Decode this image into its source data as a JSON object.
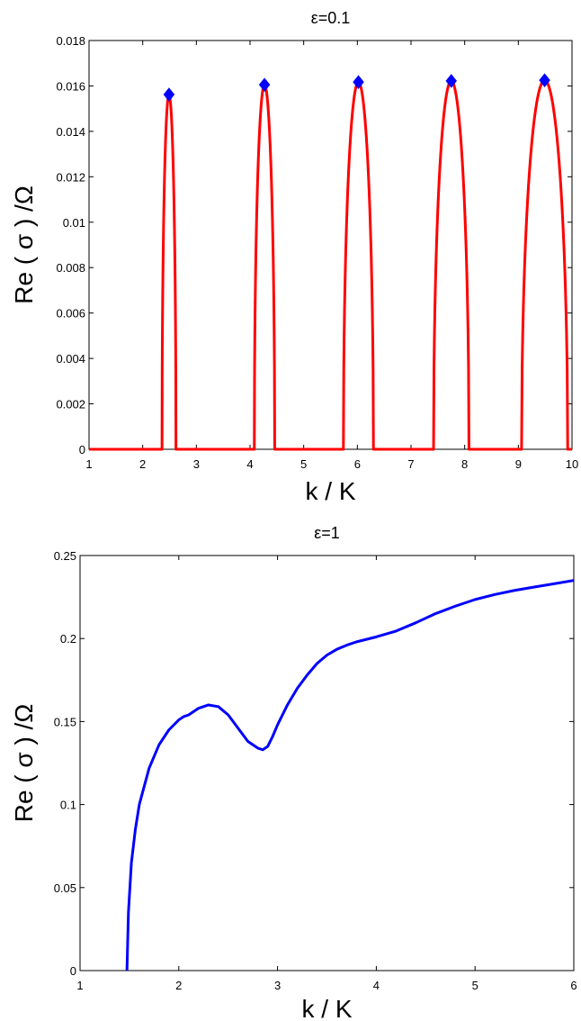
{
  "chart_data": [
    {
      "type": "line",
      "title": "ε=0.1",
      "xlabel": "k / K",
      "ylabel": "Re ( σ ) /Ω",
      "xlim": [
        1,
        10
      ],
      "ylim": [
        0,
        0.018
      ],
      "grid": false,
      "xticks": [
        "1",
        "2",
        "3",
        "4",
        "5",
        "6",
        "7",
        "8",
        "9",
        "10"
      ],
      "yticks": [
        "0",
        "0.002",
        "0.004",
        "0.006",
        "0.008",
        "0.01",
        "0.012",
        "0.014",
        "0.016",
        "0.018"
      ],
      "series": [
        {
          "color": "#ff0000",
          "bands": [
            {
              "k_start": 2.36,
              "k_end": 2.62,
              "peak_k": 2.49,
              "peak": 0.01562
            },
            {
              "k_start": 4.08,
              "k_end": 4.46,
              "peak_k": 4.27,
              "peak": 0.01605
            },
            {
              "k_start": 5.74,
              "k_end": 6.3,
              "peak_k": 6.02,
              "peak": 0.01617
            },
            {
              "k_start": 7.42,
              "k_end": 8.08,
              "peak_k": 7.75,
              "peak": 0.01622
            },
            {
              "k_start": 9.06,
              "k_end": 9.92,
              "peak_k": 9.49,
              "peak": 0.01625
            }
          ]
        }
      ],
      "markers": {
        "shape": "diamond",
        "color": "#0000ff",
        "points": [
          {
            "x": 2.49,
            "y": 0.01562
          },
          {
            "x": 4.27,
            "y": 0.01605
          },
          {
            "x": 6.02,
            "y": 0.01617
          },
          {
            "x": 7.75,
            "y": 0.01622
          },
          {
            "x": 9.49,
            "y": 0.01625
          }
        ]
      }
    },
    {
      "type": "line",
      "title": "ε=1",
      "xlabel": "k / K",
      "ylabel": "Re ( σ ) /Ω",
      "xlim": [
        1,
        6
      ],
      "ylim": [
        0,
        0.25
      ],
      "grid": false,
      "xticks": [
        "1",
        "2",
        "3",
        "4",
        "5",
        "6"
      ],
      "yticks": [
        "0",
        "0.05",
        "0.1",
        "0.15",
        "0.2",
        "0.25"
      ],
      "series": [
        {
          "color": "#0000ff",
          "x": [
            1.475,
            1.49,
            1.52,
            1.56,
            1.6,
            1.7,
            1.8,
            1.9,
            2.0,
            2.05,
            2.1,
            2.2,
            2.3,
            2.4,
            2.5,
            2.6,
            2.7,
            2.8,
            2.85,
            2.9,
            2.95,
            3.0,
            3.1,
            3.2,
            3.3,
            3.4,
            3.5,
            3.6,
            3.7,
            3.8,
            3.9,
            4.0,
            4.2,
            4.4,
            4.6,
            4.8,
            5.0,
            5.2,
            5.4,
            5.6,
            5.8,
            6.0
          ],
          "y": [
            0.0,
            0.035,
            0.065,
            0.085,
            0.1,
            0.122,
            0.136,
            0.145,
            0.151,
            0.153,
            0.154,
            0.158,
            0.16,
            0.159,
            0.154,
            0.146,
            0.138,
            0.134,
            0.133,
            0.135,
            0.141,
            0.148,
            0.16,
            0.17,
            0.178,
            0.185,
            0.19,
            0.1935,
            0.196,
            0.198,
            0.1995,
            0.201,
            0.2045,
            0.2095,
            0.215,
            0.2195,
            0.2235,
            0.2265,
            0.229,
            0.231,
            0.233,
            0.235
          ]
        }
      ]
    }
  ]
}
